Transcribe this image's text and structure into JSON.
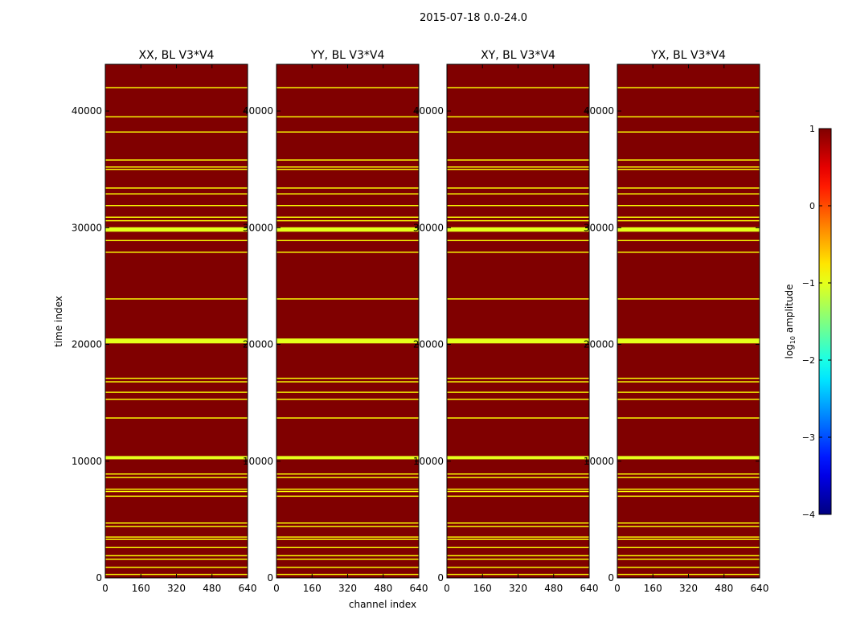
{
  "figure_title": "2015-07-18 0.0-24.0",
  "chart_data": {
    "type": "heatmap",
    "title": "2015-07-18 0.0-24.0",
    "xlabel": "channel index",
    "ylabel": "time index",
    "xlim": [
      0,
      640
    ],
    "ylim": [
      0,
      44000
    ],
    "x_ticks": [
      0,
      160,
      320,
      480,
      640
    ],
    "y_ticks": [
      0,
      10000,
      20000,
      30000,
      40000
    ],
    "panels": [
      {
        "title": "XX, BL V3*V4"
      },
      {
        "title": "YY, BL V3*V4"
      },
      {
        "title": "XY, BL V3*V4"
      },
      {
        "title": "YX, BL V3*V4"
      }
    ],
    "background": {
      "log10_amplitude": 1.0,
      "color": "#7f0000"
    },
    "flagged_rows": [
      {
        "time": 42000,
        "width": 100,
        "log10_amplitude": -0.9
      },
      {
        "time": 39500,
        "width": 100,
        "log10_amplitude": -0.9
      },
      {
        "time": 38200,
        "width": 100,
        "log10_amplitude": -0.9
      },
      {
        "time": 35800,
        "width": 100,
        "log10_amplitude": -0.9
      },
      {
        "time": 35200,
        "width": 100,
        "log10_amplitude": -0.9
      },
      {
        "time": 35000,
        "width": 100,
        "log10_amplitude": -0.9
      },
      {
        "time": 33400,
        "width": 100,
        "log10_amplitude": -0.9
      },
      {
        "time": 32900,
        "width": 100,
        "log10_amplitude": -0.9
      },
      {
        "time": 31900,
        "width": 100,
        "log10_amplitude": -0.9
      },
      {
        "time": 30900,
        "width": 100,
        "log10_amplitude": -0.9
      },
      {
        "time": 30600,
        "width": 100,
        "log10_amplitude": -0.9
      },
      {
        "time": 29850,
        "width": 380,
        "log10_amplitude": -1.0
      },
      {
        "time": 28900,
        "width": 100,
        "log10_amplitude": -0.9
      },
      {
        "time": 27900,
        "width": 100,
        "log10_amplitude": -0.9
      },
      {
        "time": 23900,
        "width": 100,
        "log10_amplitude": -0.9
      },
      {
        "time": 20300,
        "width": 420,
        "log10_amplitude": -1.0
      },
      {
        "time": 17100,
        "width": 100,
        "log10_amplitude": -0.9
      },
      {
        "time": 16800,
        "width": 100,
        "log10_amplitude": -0.9
      },
      {
        "time": 15900,
        "width": 100,
        "log10_amplitude": -0.9
      },
      {
        "time": 15300,
        "width": 100,
        "log10_amplitude": -0.9
      },
      {
        "time": 13700,
        "width": 100,
        "log10_amplitude": -0.9
      },
      {
        "time": 10300,
        "width": 280,
        "log10_amplitude": -1.0
      },
      {
        "time": 8900,
        "width": 100,
        "log10_amplitude": -0.9
      },
      {
        "time": 8600,
        "width": 100,
        "log10_amplitude": -0.9
      },
      {
        "time": 7600,
        "width": 100,
        "log10_amplitude": -0.9
      },
      {
        "time": 7400,
        "width": 100,
        "log10_amplitude": -0.9
      },
      {
        "time": 7000,
        "width": 100,
        "log10_amplitude": -0.9
      },
      {
        "time": 4700,
        "width": 100,
        "log10_amplitude": -0.9
      },
      {
        "time": 4400,
        "width": 100,
        "log10_amplitude": -0.9
      },
      {
        "time": 3500,
        "width": 100,
        "log10_amplitude": -0.9
      },
      {
        "time": 3300,
        "width": 100,
        "log10_amplitude": -0.9
      },
      {
        "time": 2600,
        "width": 100,
        "log10_amplitude": -0.9
      },
      {
        "time": 1900,
        "width": 100,
        "log10_amplitude": -0.9
      },
      {
        "time": 1600,
        "width": 100,
        "log10_amplitude": -0.9
      },
      {
        "time": 900,
        "width": 100,
        "log10_amplitude": -0.9
      },
      {
        "time": 300,
        "width": 100,
        "log10_amplitude": -0.9
      }
    ],
    "colorbar": {
      "label": "log10 amplitude",
      "label_main": "log",
      "label_sub": "10",
      "label_rest": " amplitude",
      "range": [
        -4,
        1
      ],
      "ticks": [
        1,
        0,
        -1,
        -2,
        -3,
        -4
      ],
      "tick_labels": [
        "1",
        "0",
        "−1",
        "−2",
        "−3",
        "−4"
      ],
      "colormap": "jet"
    }
  }
}
